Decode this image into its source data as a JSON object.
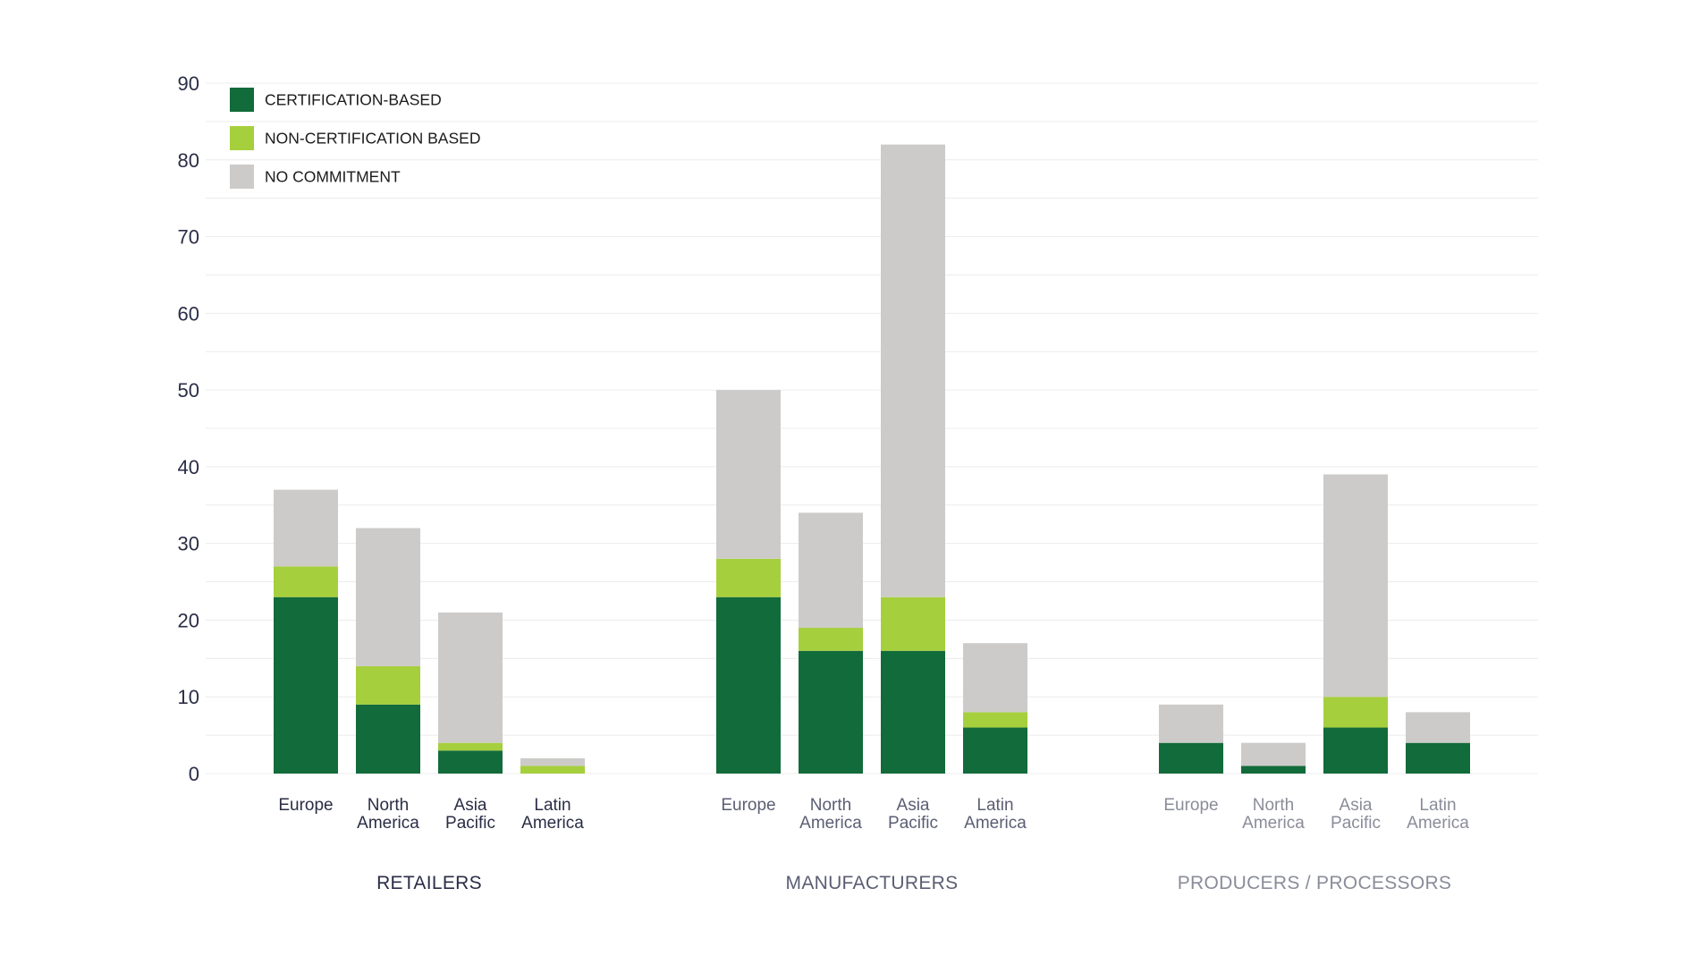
{
  "chart_data": {
    "type": "bar",
    "stacked": true,
    "ylim": [
      0,
      90
    ],
    "yticks": [
      0,
      10,
      20,
      30,
      40,
      50,
      60,
      70,
      80,
      90
    ],
    "grid": true,
    "legend_position": "top-left",
    "series": [
      {
        "name": "CERTIFICATION-BASED",
        "color": "#126b3a"
      },
      {
        "name": "NON-CERTIFICATION BASED",
        "color": "#a6cf3d"
      },
      {
        "name": "NO COMMITMENT",
        "color": "#cccbc9"
      }
    ],
    "groups": [
      {
        "label": "RETAILERS",
        "label_color": "#2a2d45",
        "categories": [
          {
            "line1": "Europe",
            "line2": "",
            "values": [
              23,
              4,
              10
            ]
          },
          {
            "line1": "North",
            "line2": "America",
            "values": [
              9,
              5,
              18
            ]
          },
          {
            "line1": "Asia",
            "line2": "Pacific",
            "values": [
              3,
              1,
              17
            ]
          },
          {
            "line1": "Latin",
            "line2": "America",
            "values": [
              0,
              1,
              1
            ]
          }
        ]
      },
      {
        "label": "MANUFACTURERS",
        "label_color": "#5b5e73",
        "categories": [
          {
            "line1": "Europe",
            "line2": "",
            "values": [
              23,
              5,
              22
            ]
          },
          {
            "line1": "North",
            "line2": "America",
            "values": [
              16,
              3,
              15
            ]
          },
          {
            "line1": "Asia",
            "line2": "Pacific",
            "values": [
              16,
              7,
              59
            ]
          },
          {
            "line1": "Latin",
            "line2": "America",
            "values": [
              6,
              2,
              9
            ]
          }
        ]
      },
      {
        "label": "PRODUCERS / PROCESSORS",
        "label_color": "#8a8c99",
        "categories": [
          {
            "line1": "Europe",
            "line2": "",
            "values": [
              4,
              0,
              5
            ]
          },
          {
            "line1": "North",
            "line2": "America",
            "values": [
              1,
              0,
              3
            ]
          },
          {
            "line1": "Asia",
            "line2": "Pacific",
            "values": [
              6,
              4,
              29
            ]
          },
          {
            "line1": "Latin",
            "line2": "America",
            "values": [
              4,
              0,
              4
            ]
          }
        ]
      }
    ]
  }
}
